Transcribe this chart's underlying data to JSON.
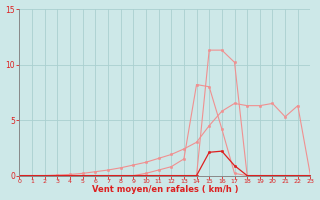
{
  "xlabel": "Vent moyen/en rafales ( km/h )",
  "bg_color": "#cde8e8",
  "grid_color": "#aad0d0",
  "lc_light": "#f09090",
  "lc_dark": "#dd2020",
  "xmin": 0,
  "xmax": 23,
  "ymin": 0,
  "ymax": 15,
  "yticks": [
    0,
    5,
    10,
    15
  ],
  "xticks": [
    0,
    1,
    2,
    3,
    4,
    5,
    6,
    7,
    8,
    9,
    10,
    11,
    12,
    13,
    14,
    15,
    16,
    17,
    18,
    19,
    20,
    21,
    22,
    23
  ],
  "s1_x": [
    0,
    1,
    2,
    3,
    4,
    5,
    6,
    7,
    8,
    9,
    10,
    11,
    12,
    13,
    14,
    15,
    16,
    17,
    18,
    19,
    20,
    21,
    22,
    23
  ],
  "s1_y": [
    0,
    0,
    0,
    0,
    0,
    0,
    0,
    0,
    0,
    0,
    0,
    0,
    0,
    0,
    0,
    11.3,
    11.3,
    10.2,
    0,
    0,
    0,
    0,
    0,
    0
  ],
  "s2_x": [
    0,
    1,
    2,
    3,
    4,
    5,
    6,
    7,
    8,
    9,
    10,
    11,
    12,
    13,
    14,
    15,
    16,
    17,
    18,
    19,
    20,
    21,
    22,
    23
  ],
  "s2_y": [
    0,
    0,
    0,
    0,
    0,
    0,
    0,
    0,
    0,
    0,
    0.2,
    0.5,
    0.8,
    1.5,
    8.2,
    8.0,
    4.2,
    0.2,
    0,
    0,
    0,
    0,
    0,
    0
  ],
  "s3_x": [
    0,
    1,
    2,
    3,
    4,
    5,
    6,
    7,
    8,
    9,
    10,
    11,
    12,
    13,
    14,
    15,
    16,
    17,
    18,
    19,
    20,
    21,
    22,
    23
  ],
  "s3_y": [
    0,
    0,
    0,
    0.05,
    0.1,
    0.2,
    0.35,
    0.5,
    0.7,
    0.95,
    1.2,
    1.55,
    1.9,
    2.4,
    3.0,
    4.5,
    5.8,
    6.5,
    6.3,
    6.3,
    6.5,
    5.3,
    6.3,
    0
  ],
  "s4_x": [
    0,
    1,
    2,
    3,
    4,
    5,
    6,
    7,
    8,
    9,
    10,
    11,
    12,
    13,
    14,
    15,
    16,
    17,
    18,
    19,
    20,
    21,
    22,
    23
  ],
  "s4_y": [
    0,
    0,
    0,
    0,
    0,
    0,
    0,
    0,
    0,
    0,
    0,
    0,
    0,
    0,
    0,
    2.1,
    2.2,
    0.9,
    0,
    0,
    0,
    0,
    0,
    0
  ]
}
